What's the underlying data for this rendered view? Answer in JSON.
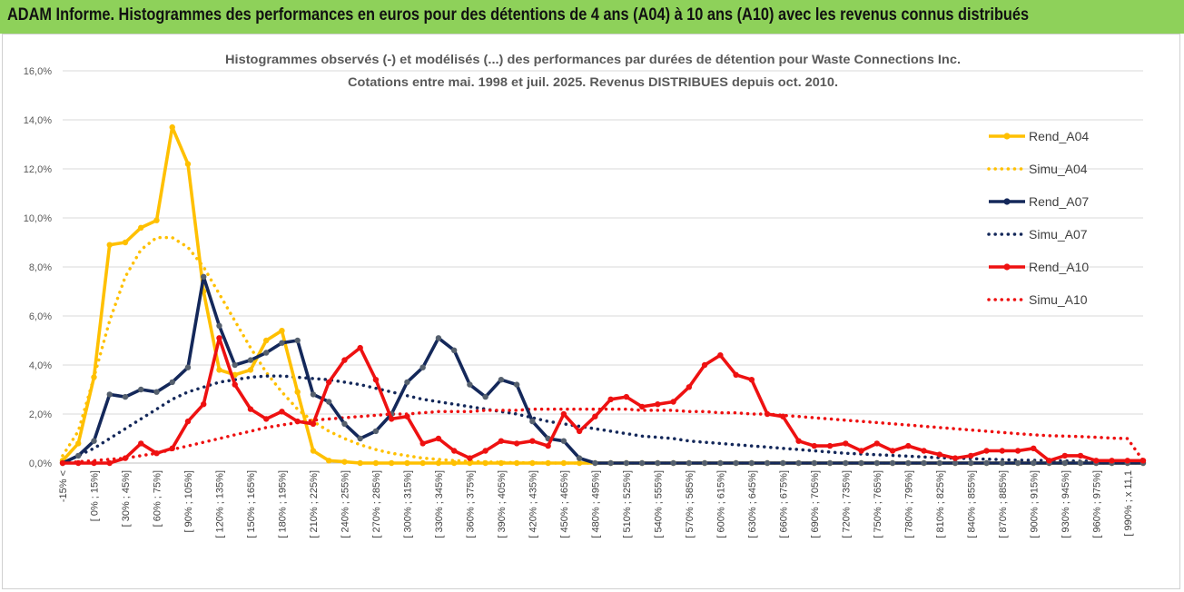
{
  "header": {
    "title": "ADAM Informe. Histogrammes des performances en euros pour des détentions de 4 ans (A04) à 10 ans (A10) avec les revenus connus distribués"
  },
  "colors": {
    "banner": "#8ed15a",
    "rend_a04": "#ffc000",
    "rend_a07": "#14285a",
    "rend_a10": "#ee1111",
    "grid": "#d9d9d9",
    "marker_a07": "#55606e"
  },
  "chart_data": {
    "type": "line",
    "title": "Histogrammes observés (-) et modélisés (...) des performances par durées de détention pour Waste Connections Inc.",
    "subtitle": "Cotations entre mai. 1998 et juil. 2025. Revenus DISTRIBUES depuis oct. 2010.",
    "xlabel": "",
    "ylabel": "",
    "ylim": [
      0,
      16
    ],
    "y_ticks": [
      "0,0%",
      "2,0%",
      "4,0%",
      "6,0%",
      "8,0%",
      "10,0%",
      "12,0%",
      "14,0%",
      "16,0%"
    ],
    "grid": "horizontal",
    "legend_position": "right",
    "x_labels_shown": [
      "-15% <",
      "[ 0% ; 15%]",
      "[ 30% ; 45%]",
      "[ 60% ; 75%]",
      "[ 90% ; 105%]",
      "[ 120% ; 135%]",
      "[ 150% ; 165%]",
      "[ 180% ; 195%]",
      "[ 210% ; 225%]",
      "[ 240% ; 255%]",
      "[ 270% ; 285%]",
      "[ 300% ; 315%]",
      "[ 330% ; 345%]",
      "[ 360% ; 375%]",
      "[ 390% ; 405%]",
      "[ 420% ; 435%]",
      "[ 450% ; 465%]",
      "[ 480% ; 495%]",
      "[ 510% ; 525%]",
      "[ 540% ; 555%]",
      "[ 570% ; 585%]",
      "[ 600% ; 615%]",
      "[ 630% ; 645%]",
      "[ 660% ; 675%]",
      "[ 690% ; 705%]",
      "[ 720% ; 735%]",
      "[ 750% ; 765%]",
      "[ 780% ; 795%]",
      "[ 810% ; 825%]",
      "[ 840% ; 855%]",
      "[ 870% ; 885%]",
      "[ 900% ; 915%]",
      "[ 930% ; 945%]",
      "[ 960% ; 975%]",
      "[ 990% ; x 11,1"
    ],
    "n_points": 70,
    "series": [
      {
        "name": "Rend_A04",
        "style": "solid",
        "color": "#ffc000",
        "values": [
          0.1,
          0.8,
          3.5,
          8.9,
          9.0,
          9.6,
          9.9,
          13.7,
          12.2,
          7.0,
          3.8,
          3.6,
          3.8,
          5.0,
          5.4,
          2.9,
          0.5,
          0.1,
          0.05,
          0.0,
          0.0,
          0.0,
          0.0,
          0.0,
          0.0,
          0.0,
          0.0,
          0.0,
          0.0,
          0.0,
          0.0,
          0.0,
          0.0,
          0.0,
          0.0,
          0.0,
          0.0,
          0.0,
          0.0,
          0.0,
          0.0,
          0.0,
          0.0,
          0.0,
          0.0,
          0.0,
          0.0,
          0.0,
          0.0,
          0.0,
          0.0,
          0.0,
          0.0,
          0.0,
          0.0,
          0.0,
          0.0,
          0.0,
          0.0,
          0.0,
          0.0,
          0.0,
          0.0,
          0.0,
          0.0,
          0.0,
          0.0,
          0.0,
          0.0,
          0.0
        ]
      },
      {
        "name": "Simu_A04",
        "style": "dotted",
        "color": "#ffc000",
        "values": [
          0.3,
          1.3,
          3.5,
          5.8,
          7.6,
          8.7,
          9.2,
          9.2,
          8.8,
          8.0,
          6.9,
          5.8,
          4.7,
          3.7,
          2.9,
          2.2,
          1.7,
          1.3,
          1.0,
          0.75,
          0.55,
          0.4,
          0.3,
          0.2,
          0.15,
          0.1,
          0.07,
          0.05,
          0.03,
          0.02,
          0.01,
          0.0,
          0.0,
          0.0,
          0.0,
          0.0,
          0.0,
          0.0,
          0.0,
          0.0,
          0.0,
          0.0,
          0.0,
          0.0,
          0.0,
          0.0,
          0.0,
          0.0,
          0.0,
          0.0,
          0.0,
          0.0,
          0.0,
          0.0,
          0.0,
          0.0,
          0.0,
          0.0,
          0.0,
          0.0,
          0.0,
          0.0,
          0.0,
          0.0,
          0.0,
          0.0,
          0.0,
          0.0,
          0.0,
          0.0
        ]
      },
      {
        "name": "Rend_A07",
        "style": "solid",
        "color": "#14285a",
        "values": [
          0.0,
          0.3,
          0.9,
          2.8,
          2.7,
          3.0,
          2.9,
          3.3,
          3.9,
          7.6,
          5.6,
          4.0,
          4.2,
          4.5,
          4.9,
          5.0,
          2.8,
          2.5,
          1.6,
          1.0,
          1.3,
          2.0,
          3.3,
          3.9,
          5.1,
          4.6,
          3.2,
          2.7,
          3.4,
          3.2,
          1.7,
          1.0,
          0.9,
          0.2,
          0.0,
          0.0,
          0.0,
          0.0,
          0.0,
          0.0,
          0.0,
          0.0,
          0.0,
          0.0,
          0.0,
          0.0,
          0.0,
          0.0,
          0.0,
          0.0,
          0.0,
          0.0,
          0.0,
          0.0,
          0.0,
          0.0,
          0.0,
          0.0,
          0.0,
          0.0,
          0.0,
          0.0,
          0.0,
          0.0,
          0.0,
          0.0,
          0.0,
          0.0,
          0.0,
          0.0
        ]
      },
      {
        "name": "Simu_A07",
        "style": "dotted",
        "color": "#14285a",
        "values": [
          0.0,
          0.3,
          0.6,
          1.0,
          1.4,
          1.8,
          2.2,
          2.6,
          2.9,
          3.1,
          3.3,
          3.4,
          3.5,
          3.55,
          3.55,
          3.5,
          3.45,
          3.4,
          3.3,
          3.2,
          3.05,
          2.9,
          2.75,
          2.6,
          2.5,
          2.4,
          2.3,
          2.2,
          2.1,
          2.0,
          1.85,
          1.7,
          1.6,
          1.5,
          1.4,
          1.3,
          1.2,
          1.1,
          1.05,
          1.0,
          0.9,
          0.85,
          0.8,
          0.75,
          0.7,
          0.65,
          0.6,
          0.55,
          0.5,
          0.45,
          0.4,
          0.37,
          0.34,
          0.31,
          0.28,
          0.25,
          0.22,
          0.2,
          0.18,
          0.16,
          0.14,
          0.12,
          0.11,
          0.1,
          0.09,
          0.08,
          0.07,
          0.06,
          0.05,
          0.05
        ]
      },
      {
        "name": "Rend_A10",
        "style": "solid",
        "color": "#ee1111",
        "values": [
          0.0,
          0.0,
          0.0,
          0.0,
          0.2,
          0.8,
          0.4,
          0.6,
          1.7,
          2.4,
          5.1,
          3.2,
          2.2,
          1.8,
          2.1,
          1.7,
          1.6,
          3.3,
          4.2,
          4.7,
          3.4,
          1.8,
          1.9,
          0.8,
          1.0,
          0.5,
          0.2,
          0.5,
          0.9,
          0.8,
          0.9,
          0.7,
          2.0,
          1.3,
          1.9,
          2.6,
          2.7,
          2.3,
          2.4,
          2.5,
          3.1,
          4.0,
          4.4,
          3.6,
          3.4,
          2.0,
          1.9,
          0.9,
          0.7,
          0.7,
          0.8,
          0.5,
          0.8,
          0.5,
          0.7,
          0.5,
          0.35,
          0.2,
          0.3,
          0.5,
          0.5,
          0.5,
          0.6,
          0.1,
          0.3,
          0.3,
          0.1,
          0.1,
          0.1,
          0.1
        ]
      },
      {
        "name": "Simu_A10",
        "style": "dotted",
        "color": "#ee1111",
        "values": [
          0.0,
          0.05,
          0.1,
          0.15,
          0.2,
          0.3,
          0.4,
          0.55,
          0.7,
          0.85,
          1.0,
          1.15,
          1.3,
          1.45,
          1.55,
          1.65,
          1.75,
          1.8,
          1.85,
          1.9,
          1.95,
          2.0,
          2.0,
          2.05,
          2.1,
          2.1,
          2.1,
          2.15,
          2.15,
          2.15,
          2.2,
          2.2,
          2.2,
          2.2,
          2.2,
          2.2,
          2.2,
          2.15,
          2.15,
          2.15,
          2.1,
          2.1,
          2.05,
          2.05,
          2.0,
          2.0,
          1.95,
          1.9,
          1.85,
          1.8,
          1.75,
          1.7,
          1.65,
          1.6,
          1.55,
          1.5,
          1.45,
          1.4,
          1.35,
          1.3,
          1.25,
          1.2,
          1.15,
          1.12,
          1.1,
          1.08,
          1.05,
          1.02,
          1.0,
          0.1
        ]
      }
    ]
  }
}
